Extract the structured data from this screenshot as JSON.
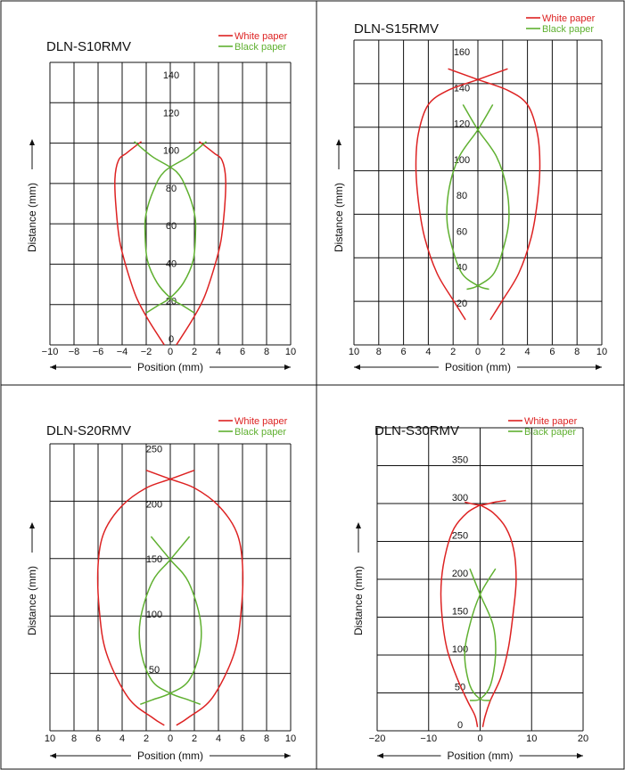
{
  "colors": {
    "white_paper": "#dd2222",
    "black_paper": "#5fb030",
    "grid": "#111111"
  },
  "chart_data": [
    {
      "type": "line",
      "title": "DLN-S10RMV",
      "xlabel": "Position (mm)",
      "ylabel": "Distance (mm)",
      "xlim": [
        -10,
        10
      ],
      "ylim": [
        0,
        150
      ],
      "x_tick_labels": [
        "−10",
        "−8",
        "−6",
        "−4",
        "−2",
        "0",
        "2",
        "4",
        "6",
        "8",
        "10"
      ],
      "y_tick_labels": [
        "0",
        "20",
        "40",
        "60",
        "80",
        "100",
        "120",
        "140"
      ],
      "legend": [
        "White paper",
        "Black paper"
      ],
      "series": [
        {
          "name": "White paper",
          "segments": [
            [
              [
                -2.4,
                108
              ],
              [
                -3.6,
                102
              ],
              [
                -4.3,
                98
              ],
              [
                -4.6,
                88
              ],
              [
                -4.5,
                72
              ],
              [
                -4.2,
                55
              ],
              [
                -3.6,
                40
              ],
              [
                -2.8,
                25
              ],
              [
                -1.8,
                13
              ],
              [
                -0.5,
                0
              ]
            ],
            [
              [
                2.4,
                108
              ],
              [
                3.6,
                102
              ],
              [
                4.3,
                98
              ],
              [
                4.6,
                88
              ],
              [
                4.5,
                72
              ],
              [
                4.2,
                55
              ],
              [
                3.6,
                40
              ],
              [
                2.8,
                25
              ],
              [
                1.8,
                13
              ],
              [
                0.5,
                0
              ]
            ]
          ]
        },
        {
          "name": "Black paper",
          "segments": [
            [
              [
                -3,
                108
              ],
              [
                -1.5,
                100
              ],
              [
                0.5,
                92
              ],
              [
                1.4,
                82
              ],
              [
                2,
                70
              ],
              [
                2.1,
                60
              ],
              [
                1.9,
                45
              ],
              [
                1.1,
                33
              ],
              [
                0,
                25
              ],
              [
                -1,
                21
              ],
              [
                -2,
                17
              ]
            ],
            [
              [
                3,
                108
              ],
              [
                1.5,
                100
              ],
              [
                -0.5,
                92
              ],
              [
                -1.4,
                82
              ],
              [
                -2,
                70
              ],
              [
                -2.1,
                60
              ],
              [
                -1.9,
                45
              ],
              [
                -1.1,
                33
              ],
              [
                0,
                25
              ],
              [
                1,
                21
              ],
              [
                2,
                17
              ]
            ]
          ]
        }
      ]
    },
    {
      "type": "line",
      "title": "DLN-S15RMV",
      "xlabel": "Position (mm)",
      "ylabel": "Distance (mm)",
      "xlim": [
        10,
        -10
      ],
      "ylim": [
        0,
        170
      ],
      "x_tick_labels": [
        "10",
        "8",
        "6",
        "4",
        "2",
        "0",
        "2",
        "4",
        "6",
        "8",
        "10"
      ],
      "y_tick_labels": [
        "20",
        "40",
        "60",
        "80",
        "100",
        "120",
        "140",
        "160"
      ],
      "legend": [
        "White paper",
        "Black paper"
      ],
      "series": [
        {
          "name": "White paper",
          "segments": [
            [
              [
                2.4,
                154
              ],
              [
                0,
                148
              ],
              [
                -2.4,
                142
              ],
              [
                -4,
                134
              ],
              [
                -4.8,
                118
              ],
              [
                -5,
                100
              ],
              [
                -4.8,
                80
              ],
              [
                -4.3,
                60
              ],
              [
                -3.3,
                40
              ],
              [
                -2,
                25
              ],
              [
                -1,
                14
              ]
            ],
            [
              [
                -2.4,
                154
              ],
              [
                0,
                148
              ],
              [
                2.4,
                142
              ],
              [
                4,
                134
              ],
              [
                4.8,
                118
              ],
              [
                5,
                100
              ],
              [
                4.8,
                80
              ],
              [
                4.3,
                60
              ],
              [
                3.3,
                40
              ],
              [
                2,
                25
              ],
              [
                1,
                14
              ]
            ]
          ]
        },
        {
          "name": "Black paper",
          "segments": [
            [
              [
                1.2,
                134
              ],
              [
                0,
                120
              ],
              [
                -1.5,
                105
              ],
              [
                -2.3,
                88
              ],
              [
                -2.5,
                70
              ],
              [
                -2.1,
                55
              ],
              [
                -1.3,
                40
              ],
              [
                0,
                33
              ],
              [
                0.9,
                31
              ]
            ],
            [
              [
                -1.2,
                134
              ],
              [
                0,
                120
              ],
              [
                1.5,
                105
              ],
              [
                2.3,
                88
              ],
              [
                2.5,
                70
              ],
              [
                2.1,
                55
              ],
              [
                1.3,
                40
              ],
              [
                0,
                33
              ],
              [
                -0.9,
                31
              ]
            ]
          ]
        }
      ]
    },
    {
      "type": "line",
      "title": "DLN-S20RMV",
      "xlabel": "Position (mm)",
      "ylabel": "Distance (mm)",
      "xlim": [
        10,
        -10
      ],
      "ylim": [
        0,
        260
      ],
      "x_tick_labels": [
        "10",
        "8",
        "6",
        "4",
        "2",
        "0",
        "2",
        "4",
        "6",
        "8",
        "10"
      ],
      "y_tick_labels": [
        "50",
        "100",
        "150",
        "200",
        "250"
      ],
      "legend": [
        "White paper",
        "Black paper"
      ],
      "series": [
        {
          "name": "White paper",
          "segments": [
            [
              [
                -2,
                236
              ],
              [
                0,
                228
              ],
              [
                2,
                220
              ],
              [
                4,
                204
              ],
              [
                5.5,
                180
              ],
              [
                6,
                150
              ],
              [
                5.9,
                110
              ],
              [
                5.3,
                70
              ],
              [
                3.5,
                30
              ],
              [
                1.5,
                12
              ],
              [
                0.5,
                5
              ]
            ],
            [
              [
                2,
                236
              ],
              [
                0,
                228
              ],
              [
                -2,
                220
              ],
              [
                -4,
                204
              ],
              [
                -5.5,
                180
              ],
              [
                -6,
                150
              ],
              [
                -5.9,
                110
              ],
              [
                -5.3,
                70
              ],
              [
                -3.5,
                30
              ],
              [
                -1.5,
                12
              ],
              [
                -0.5,
                5
              ]
            ]
          ]
        },
        {
          "name": "Black paper",
          "segments": [
            [
              [
                -1.6,
                176
              ],
              [
                0,
                155
              ],
              [
                1.5,
                135
              ],
              [
                2.5,
                100
              ],
              [
                2.4,
                70
              ],
              [
                1.5,
                45
              ],
              [
                0,
                34
              ],
              [
                -1.5,
                28
              ],
              [
                -2.5,
                24
              ]
            ],
            [
              [
                1.6,
                176
              ],
              [
                0,
                155
              ],
              [
                -1.5,
                135
              ],
              [
                -2.5,
                100
              ],
              [
                -2.4,
                70
              ],
              [
                -1.5,
                45
              ],
              [
                0,
                34
              ],
              [
                1.5,
                28
              ],
              [
                2.5,
                24
              ]
            ]
          ]
        }
      ]
    },
    {
      "type": "line",
      "title": "DLN-S30RMV",
      "xlabel": "Position (mm)",
      "ylabel": "Distance (mm)",
      "xlim": [
        -20,
        20
      ],
      "ylim": [
        0,
        400
      ],
      "x_tick_labels": [
        "−20",
        "−10",
        "0",
        "10",
        "20"
      ],
      "y_tick_labels": [
        "0",
        "50",
        "100",
        "150",
        "200",
        "250",
        "300",
        "350"
      ],
      "legend": [
        "White paper",
        "Black paper"
      ],
      "series": [
        {
          "name": "White paper",
          "segments": [
            [
              [
                -3,
                302
              ],
              [
                0,
                298
              ],
              [
                3,
                302
              ],
              [
                5,
                304
              ]
            ],
            [
              [
                0,
                298
              ],
              [
                2.5,
                288
              ],
              [
                5,
                268
              ],
              [
                6.5,
                240
              ],
              [
                7,
                200
              ],
              [
                6.5,
                160
              ],
              [
                5.5,
                110
              ],
              [
                4,
                70
              ],
              [
                2,
                40
              ],
              [
                1,
                20
              ],
              [
                0.5,
                5
              ]
            ],
            [
              [
                0,
                298
              ],
              [
                -2.5,
                288
              ],
              [
                -5,
                268
              ],
              [
                -6.5,
                240
              ],
              [
                -7.5,
                200
              ],
              [
                -7.5,
                160
              ],
              [
                -6.5,
                110
              ],
              [
                -4.5,
                70
              ],
              [
                -2.5,
                40
              ],
              [
                -1,
                20
              ],
              [
                -0.5,
                5
              ]
            ]
          ]
        },
        {
          "name": "Black paper",
          "segments": [
            [
              [
                -2,
                214
              ],
              [
                0,
                180
              ],
              [
                2.5,
                140
              ],
              [
                3,
                100
              ],
              [
                2,
                60
              ],
              [
                0,
                42
              ],
              [
                -2,
                40
              ]
            ],
            [
              [
                3,
                214
              ],
              [
                0,
                180
              ],
              [
                -2,
                140
              ],
              [
                -3,
                100
              ],
              [
                -2,
                60
              ],
              [
                0,
                42
              ],
              [
                2,
                40
              ]
            ]
          ]
        }
      ]
    }
  ]
}
